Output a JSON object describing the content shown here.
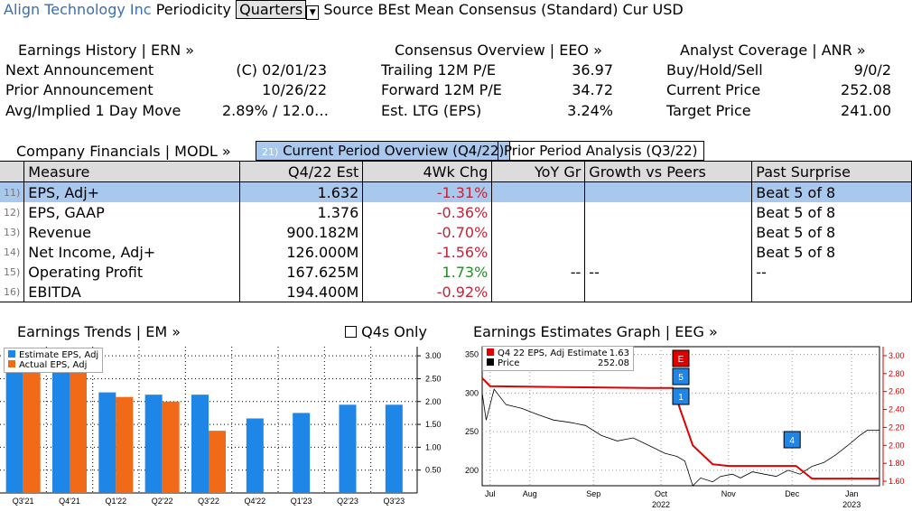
{
  "header": {
    "company": "Align Technology Inc",
    "periodicity_label": "Periodicity",
    "periodicity_value": "Quarters",
    "source_label": "Source BEst Mean Consensus (Standard) Cur USD"
  },
  "earnings_history": {
    "title": "Earnings History | ERN »",
    "rows": [
      {
        "label": "Next Announcement",
        "value": "(C)  02/01/23"
      },
      {
        "label": "Prior Announcement",
        "value": "10/26/22"
      },
      {
        "label": "Avg/Implied 1 Day Move",
        "value": "2.89% / 12.0…"
      }
    ]
  },
  "consensus": {
    "title": "Consensus Overview | EEO »",
    "rows": [
      {
        "label": "Trailing 12M P/E",
        "value": "36.97"
      },
      {
        "label": "Forward 12M P/E",
        "value": "34.72"
      },
      {
        "label": "Est. LTG (EPS)",
        "value": "3.24%"
      }
    ]
  },
  "analyst": {
    "title": "Analyst Coverage | ANR »",
    "rows": [
      {
        "label": "Buy/Hold/Sell",
        "value": "9/0/2"
      },
      {
        "label": "Current Price",
        "value": "252.08"
      },
      {
        "label": "Target Price",
        "value": "241.00"
      }
    ]
  },
  "financials": {
    "title": "Company Financials | MODL »",
    "tab_current_num": "21)",
    "tab_current": "Current Period Overview (Q4/22)",
    "tab_prior": "Prior Period Analysis (Q3/22)",
    "headers": [
      "Measure",
      "Q4/22 Est",
      "4Wk Chg",
      "YoY Gr",
      "Growth vs Peers",
      "Past Surprise"
    ],
    "rows": [
      {
        "num": "11)",
        "measure": "EPS, Adj+",
        "est": "1.632",
        "chg": "-1.31%",
        "yoy": "",
        "peers": "",
        "surprise": "Beat 5 of 8"
      },
      {
        "num": "12)",
        "measure": "EPS, GAAP",
        "est": "1.376",
        "chg": "-0.36%",
        "yoy": "",
        "peers": "",
        "surprise": "Beat 5 of 8"
      },
      {
        "num": "13)",
        "measure": "Revenue",
        "est": "900.182M",
        "chg": "-0.70%",
        "yoy": "",
        "peers": "",
        "surprise": "Beat 5 of 8"
      },
      {
        "num": "14)",
        "measure": "Net Income, Adj+",
        "est": "126.000M",
        "chg": "-1.56%",
        "yoy": "",
        "peers": "",
        "surprise": "Beat 5 of 8"
      },
      {
        "num": "15)",
        "measure": "Operating Profit",
        "est": "167.625M",
        "chg": "1.73%",
        "yoy": "--",
        "peers": "--",
        "surprise": "--"
      },
      {
        "num": "16)",
        "measure": "EBITDA",
        "est": "194.400M",
        "chg": "-0.92%",
        "yoy": "",
        "peers": "",
        "surprise": ""
      }
    ]
  },
  "trends": {
    "title": "Earnings Trends | EM »",
    "q4s_label": "Q4s Only"
  },
  "estimates": {
    "title": "Earnings Estimates Graph | EEG »"
  },
  "chart_data": [
    {
      "type": "bar",
      "categories": [
        "Q3'21",
        "Q4'21",
        "Q1'22",
        "Q2'22",
        "Q3'22",
        "Q4'22",
        "Q1'23",
        "Q2'23",
        "Q3'23"
      ],
      "series": [
        {
          "name": "Estimate EPS, Adj",
          "color": "#1e86e6",
          "values": [
            2.9,
            2.9,
            2.2,
            2.15,
            2.15,
            1.63,
            1.75,
            1.93,
            1.93
          ]
        },
        {
          "name": "Actual EPS, Adj",
          "color": "#f06a18",
          "values": [
            3.1,
            3.05,
            2.1,
            2.0,
            1.36,
            null,
            null,
            null,
            null
          ]
        }
      ],
      "yticks": [
        "3.00",
        "2.50",
        "2.00",
        "1.50",
        "1.00",
        "0.50"
      ],
      "ylim": [
        0,
        3.2
      ]
    },
    {
      "type": "line",
      "legend": [
        {
          "name": "Q4 22 EPS, Adj Estimate",
          "value": "1.63",
          "color": "#e00000"
        },
        {
          "name": "Price",
          "value": "252.08",
          "color": "#000000"
        }
      ],
      "xticks": [
        "Jul",
        "Aug",
        "Sep",
        "Oct",
        "Nov",
        "Dec",
        "Jan"
      ],
      "xyears": [
        "2022",
        "2023"
      ],
      "left_ticks": [
        "350",
        "300",
        "250",
        "200"
      ],
      "right_ticks": [
        "3.00",
        "2.80",
        "2.60",
        "2.40",
        "2.20",
        "2.00",
        "1.80",
        "1.60"
      ],
      "markers": [
        "E",
        "5",
        "1",
        "4"
      ],
      "estimate": [
        [
          0,
          2.75
        ],
        [
          0.02,
          2.66
        ],
        [
          0.2,
          2.65
        ],
        [
          0.42,
          2.64
        ],
        [
          0.48,
          2.64
        ],
        [
          0.5,
          2.38
        ],
        [
          0.53,
          2.0
        ],
        [
          0.58,
          1.79
        ],
        [
          0.62,
          1.77
        ],
        [
          0.79,
          1.77
        ],
        [
          0.83,
          1.63
        ],
        [
          1.0,
          1.63
        ]
      ],
      "price": [
        [
          0,
          300
        ],
        [
          0.01,
          265
        ],
        [
          0.03,
          305
        ],
        [
          0.06,
          285
        ],
        [
          0.1,
          280
        ],
        [
          0.14,
          272
        ],
        [
          0.18,
          265
        ],
        [
          0.22,
          262
        ],
        [
          0.26,
          258
        ],
        [
          0.3,
          245
        ],
        [
          0.34,
          238
        ],
        [
          0.38,
          242
        ],
        [
          0.42,
          232
        ],
        [
          0.46,
          222
        ],
        [
          0.49,
          218
        ],
        [
          0.51,
          212
        ],
        [
          0.53,
          180
        ],
        [
          0.55,
          190
        ],
        [
          0.58,
          185
        ],
        [
          0.6,
          192
        ],
        [
          0.63,
          195
        ],
        [
          0.65,
          190
        ],
        [
          0.68,
          198
        ],
        [
          0.71,
          195
        ],
        [
          0.74,
          192
        ],
        [
          0.77,
          200
        ],
        [
          0.8,
          195
        ],
        [
          0.83,
          205
        ],
        [
          0.86,
          210
        ],
        [
          0.89,
          220
        ],
        [
          0.92,
          232
        ],
        [
          0.95,
          245
        ],
        [
          0.97,
          252
        ],
        [
          1.0,
          252
        ]
      ],
      "ylim_left": [
        180,
        360
      ],
      "ylim_right": [
        1.55,
        3.1
      ]
    }
  ]
}
